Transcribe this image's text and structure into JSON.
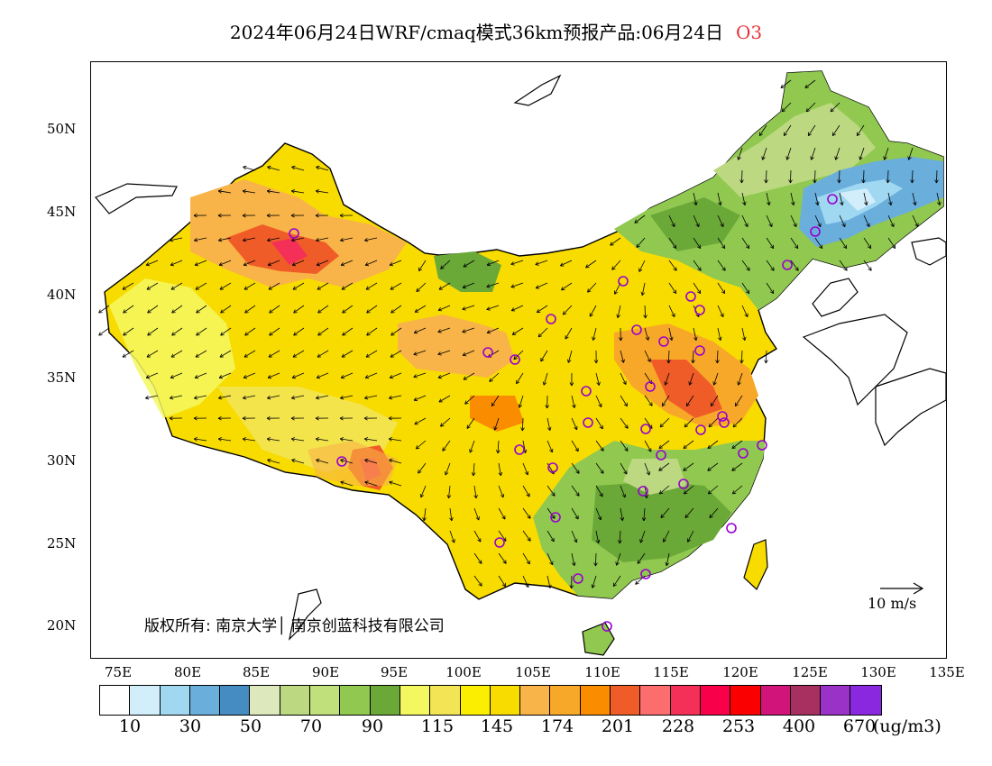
{
  "title": {
    "main": "2024年06月24日WRF/cmaq模式36km预报产品:06月24日",
    "species": "O3"
  },
  "axes": {
    "lat_ticks": [
      "50N",
      "45N",
      "40N",
      "35N",
      "30N",
      "25N",
      "20N"
    ],
    "lon_ticks": [
      "75E",
      "80E",
      "85E",
      "90E",
      "95E",
      "100E",
      "105E",
      "110E",
      "115E",
      "120E",
      "125E",
      "130E",
      "135E"
    ]
  },
  "copyright": "版权所有: 南京大学│ 南京创蓝科技有限公司",
  "wind_reference": "10 m/s",
  "colorbar": {
    "colors": [
      "#ffffff",
      "#d2eefa",
      "#a0d8f2",
      "#6aaedc",
      "#448cc2",
      "#dde8bc",
      "#bcd880",
      "#c0e07c",
      "#90c850",
      "#6aa838",
      "#f4f860",
      "#f2e454",
      "#fcee00",
      "#f8dc00",
      "#f8b448",
      "#f8a828",
      "#fa8c00",
      "#f05c28",
      "#fc6e6e",
      "#f43058",
      "#f8004a",
      "#fa0000",
      "#d0147a",
      "#a83060",
      "#9a32c8",
      "#8a28e0"
    ],
    "labels": [
      "10",
      "30",
      "50",
      "70",
      "90",
      "115",
      "145",
      "174",
      "201",
      "228",
      "253",
      "400",
      "670"
    ],
    "unit": "(ug/m3)"
  },
  "colors": {
    "title_accent": "#e8333a",
    "station_marker": "#9a00d0"
  }
}
